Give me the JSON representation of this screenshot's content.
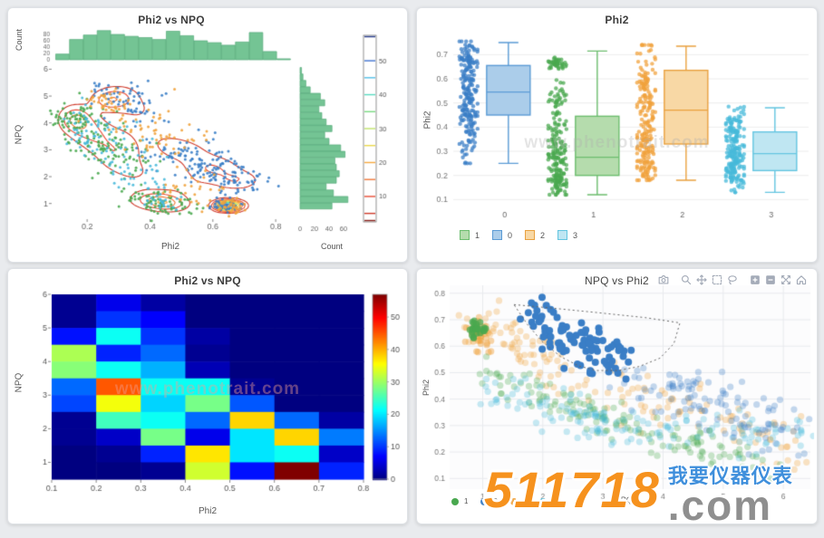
{
  "page": {
    "background": "#e9ebee",
    "site_watermark": {
      "number": "511718",
      "suffix": ".com",
      "chinese": "我要仪器仪表",
      "number_color": "#f6921e",
      "suffix_color": "#8f8f8f",
      "chinese_color": "#3f8fdc"
    },
    "faint_watermark": "www.phenotrait.com"
  },
  "colors": {
    "blue": {
      "dot": "#3a7ec6",
      "fill": "#abcdea",
      "edge": "#5b9bd5"
    },
    "green": {
      "dot": "#49a84f",
      "fill": "#b5dcad",
      "edge": "#6cbd6e"
    },
    "orange": {
      "dot": "#f0a23c",
      "fill": "#f8d8a5",
      "edge": "#e9a13f"
    },
    "cyan": {
      "dot": "#47b9da",
      "fill": "#bfe6f2",
      "edge": "#63c5e0"
    },
    "hist_fill": "#74c494",
    "hist_edge": "#55ab79"
  },
  "chart_data": [
    {
      "type": "scatter",
      "subtype": "kde-jointplot",
      "title": "Phi2 vs NPQ",
      "xlabel": "Phi2",
      "ylabel": "NPQ",
      "xlim": [
        0.09,
        0.84
      ],
      "ylim": [
        0.45,
        6.25
      ],
      "xticks": [
        0.2,
        0.4,
        0.6,
        0.8
      ],
      "yticks": [
        1,
        2,
        3,
        4,
        5,
        6
      ],
      "top_hist": {
        "label": "Count",
        "ticks": [
          0,
          20,
          40,
          60,
          80
        ],
        "bin_start": 0.1,
        "bin_width": 0.044,
        "values": [
          18,
          64,
          78,
          92,
          80,
          74,
          70,
          64,
          90,
          76,
          60,
          54,
          46,
          56,
          86,
          26,
          3
        ]
      },
      "right_hist": {
        "label": "Count",
        "ticks": [
          0,
          20,
          40,
          60
        ],
        "bin_start": 5.95,
        "bin_step": 0.24,
        "values": [
          2,
          4,
          8,
          14,
          28,
          34,
          26,
          30,
          36,
          44,
          34,
          40,
          56,
          62,
          48,
          50,
          54,
          50,
          36,
          46,
          66,
          44
        ]
      },
      "colorbar": {
        "ticks": [
          10,
          20,
          30,
          40,
          50
        ],
        "levels": [
          5,
          10,
          15,
          20,
          25,
          30,
          35,
          40,
          45,
          50
        ],
        "level_colors": [
          "#cf3a2a",
          "#e84a33",
          "#f07838",
          "#f6a83e",
          "#ecd94e",
          "#bfe468",
          "#7cdc85",
          "#58dcc0",
          "#4fc0e8",
          "#3f72d0"
        ],
        "edge_top_color": "#2b3f90",
        "edge_bottom_color": "#8b1f1a"
      },
      "clusters": [
        {
          "key": "blue",
          "cx": 0.3,
          "cy": 5.05,
          "sx": 0.05,
          "sy": 0.28,
          "n": 45
        },
        {
          "key": "blue",
          "cx": 0.36,
          "cy": 4.55,
          "sx": 0.05,
          "sy": 0.3,
          "n": 25
        },
        {
          "key": "blue",
          "cx": 0.52,
          "cy": 2.9,
          "sx": 0.07,
          "sy": 0.35,
          "n": 55
        },
        {
          "key": "blue",
          "cx": 0.6,
          "cy": 2.3,
          "sx": 0.06,
          "sy": 0.3,
          "n": 70
        },
        {
          "key": "blue",
          "cx": 0.68,
          "cy": 1.85,
          "sx": 0.05,
          "sy": 0.25,
          "n": 45
        },
        {
          "key": "blue",
          "cx": 0.64,
          "cy": 0.92,
          "sx": 0.025,
          "sy": 0.12,
          "n": 45
        },
        {
          "key": "green",
          "cx": 0.16,
          "cy": 4.15,
          "sx": 0.035,
          "sy": 0.35,
          "n": 70
        },
        {
          "key": "green",
          "cx": 0.24,
          "cy": 3.4,
          "sx": 0.05,
          "sy": 0.45,
          "n": 55
        },
        {
          "key": "green",
          "cx": 0.3,
          "cy": 2.6,
          "sx": 0.05,
          "sy": 0.4,
          "n": 45
        },
        {
          "key": "green",
          "cx": 0.4,
          "cy": 1.15,
          "sx": 0.05,
          "sy": 0.25,
          "n": 55
        },
        {
          "key": "green",
          "cx": 0.48,
          "cy": 0.95,
          "sx": 0.04,
          "sy": 0.2,
          "n": 25
        },
        {
          "key": "cyan",
          "cx": 0.2,
          "cy": 3.8,
          "sx": 0.04,
          "sy": 0.4,
          "n": 45
        },
        {
          "key": "cyan",
          "cx": 0.3,
          "cy": 3.1,
          "sx": 0.05,
          "sy": 0.4,
          "n": 35
        },
        {
          "key": "cyan",
          "cx": 0.36,
          "cy": 2.1,
          "sx": 0.05,
          "sy": 0.35,
          "n": 30
        },
        {
          "key": "cyan",
          "cx": 0.44,
          "cy": 1.05,
          "sx": 0.035,
          "sy": 0.18,
          "n": 25
        },
        {
          "key": "orange",
          "cx": 0.27,
          "cy": 4.8,
          "sx": 0.04,
          "sy": 0.25,
          "n": 40
        },
        {
          "key": "orange",
          "cx": 0.37,
          "cy": 3.9,
          "sx": 0.06,
          "sy": 0.4,
          "n": 30
        },
        {
          "key": "orange",
          "cx": 0.46,
          "cy": 3.3,
          "sx": 0.06,
          "sy": 0.35,
          "n": 30
        },
        {
          "key": "orange",
          "cx": 0.52,
          "cy": 1.6,
          "sx": 0.06,
          "sy": 0.3,
          "n": 30
        },
        {
          "key": "orange",
          "cx": 0.66,
          "cy": 0.92,
          "sx": 0.03,
          "sy": 0.14,
          "n": 40
        }
      ]
    },
    {
      "type": "box",
      "title": "Phi2",
      "ylabel": "Phi2",
      "categories": [
        "0",
        "1",
        "2",
        "3"
      ],
      "ylim": [
        0.075,
        0.78
      ],
      "yticks": [
        0.1,
        0.2,
        0.3,
        0.4,
        0.5,
        0.6,
        0.7
      ],
      "series": [
        {
          "cat": "0",
          "key": "blue",
          "lo": 0.25,
          "q1": 0.45,
          "med": 0.545,
          "q3": 0.655,
          "hi": 0.75,
          "strip": [
            {
              "c": 0.55,
              "s": 0.1,
              "n": 120
            },
            {
              "c": 0.4,
              "s": 0.08,
              "n": 60
            },
            {
              "c": 0.68,
              "s": 0.04,
              "n": 45
            }
          ]
        },
        {
          "cat": "1",
          "key": "green",
          "lo": 0.12,
          "q1": 0.2,
          "med": 0.275,
          "q3": 0.445,
          "hi": 0.715,
          "strip": [
            {
              "c": 0.25,
              "s": 0.07,
              "n": 90
            },
            {
              "c": 0.38,
              "s": 0.09,
              "n": 50
            },
            {
              "c": 0.5,
              "s": 0.05,
              "n": 30
            },
            {
              "c": 0.663,
              "s": 0.013,
              "n": 45
            },
            {
              "c": 0.17,
              "s": 0.03,
              "n": 40
            }
          ]
        },
        {
          "cat": "2",
          "key": "orange",
          "lo": 0.18,
          "q1": 0.33,
          "med": 0.47,
          "q3": 0.635,
          "hi": 0.735,
          "strip": [
            {
              "c": 0.45,
              "s": 0.12,
              "n": 85
            },
            {
              "c": 0.6,
              "s": 0.07,
              "n": 55
            },
            {
              "c": 0.3,
              "s": 0.06,
              "n": 55
            },
            {
              "c": 0.22,
              "s": 0.03,
              "n": 30
            }
          ]
        },
        {
          "cat": "3",
          "key": "cyan",
          "lo": 0.13,
          "q1": 0.22,
          "med": 0.29,
          "q3": 0.38,
          "hi": 0.48,
          "strip": [
            {
              "c": 0.3,
              "s": 0.07,
              "n": 115
            },
            {
              "c": 0.22,
              "s": 0.04,
              "n": 60
            },
            {
              "c": 0.42,
              "s": 0.04,
              "n": 45
            }
          ]
        }
      ],
      "legend": [
        {
          "label": "1",
          "key": "green"
        },
        {
          "label": "0",
          "key": "blue"
        },
        {
          "label": "2",
          "key": "orange"
        },
        {
          "label": "3",
          "key": "cyan"
        }
      ]
    },
    {
      "type": "heatmap",
      "title": "Phi2 vs NPQ",
      "xlabel": "Phi2",
      "ylabel": "NPQ",
      "x_edges": [
        0.1,
        0.2,
        0.3,
        0.4,
        0.5,
        0.6,
        0.7,
        0.8
      ],
      "y_top": 6.0,
      "y_bottom": 0.5,
      "row_height": 0.5,
      "xticks": [
        0.1,
        0.2,
        0.3,
        0.4,
        0.5,
        0.6,
        0.7,
        0.8
      ],
      "yticks": [
        1,
        2,
        3,
        4,
        5,
        6
      ],
      "vmax": 57,
      "colorbar_ticks": [
        0,
        10,
        20,
        30,
        40,
        50
      ],
      "values": [
        [
          1,
          6,
          2,
          0,
          0,
          0,
          0
        ],
        [
          1,
          10,
          7,
          0,
          0,
          0,
          0
        ],
        [
          8,
          22,
          10,
          2,
          0,
          0,
          0
        ],
        [
          31,
          9,
          13,
          1,
          0,
          0,
          0
        ],
        [
          29,
          22,
          17,
          3,
          0,
          0,
          0
        ],
        [
          13,
          45,
          22,
          22,
          1,
          0,
          0
        ],
        [
          11,
          35,
          19,
          28,
          12,
          0,
          0
        ],
        [
          1,
          25,
          22,
          13,
          38,
          13,
          2
        ],
        [
          1,
          4,
          28,
          6,
          20,
          38,
          14
        ],
        [
          0,
          1,
          9,
          37,
          20,
          22,
          4
        ],
        [
          0,
          0,
          1,
          33,
          8,
          57,
          9
        ]
      ]
    },
    {
      "type": "scatter",
      "subtype": "plotly-lasso",
      "title": "NPQ vs Phi2",
      "xlabel": "NPQ",
      "ylabel": "Phi2",
      "xlim": [
        0.45,
        6.45
      ],
      "ylim": [
        0.06,
        0.83
      ],
      "xticks": [
        1,
        2,
        3,
        4,
        5,
        6
      ],
      "yticks": [
        0.1,
        0.2,
        0.3,
        0.4,
        0.5,
        0.6,
        0.7,
        0.8
      ],
      "legend": [
        {
          "label": "1",
          "key": "green"
        },
        {
          "label": "0",
          "key": "blue"
        },
        {
          "label": "2",
          "key": "orange"
        },
        {
          "label": "3",
          "key": "cyan"
        }
      ],
      "modebar_icons": [
        "camera",
        "zoom",
        "pan",
        "box-select",
        "lasso",
        "zoom-in",
        "zoom-out",
        "autoscale",
        "reset-home"
      ],
      "bands": [
        {
          "key": "orange",
          "kind": "band",
          "x0": 0.75,
          "y0": 0.7,
          "x1": 2.2,
          "y1": 0.55,
          "sy": 0.05,
          "n": 60,
          "alpha": 0.3
        },
        {
          "key": "orange",
          "kind": "band",
          "x0": 2.2,
          "y0": 0.5,
          "x1": 6.3,
          "y1": 0.22,
          "sy": 0.05,
          "n": 95,
          "alpha": 0.3
        },
        {
          "key": "orange",
          "kind": "cluster",
          "cx": 1.0,
          "cy": 0.655,
          "sx": 0.12,
          "sy": 0.04,
          "n": 35,
          "alpha": 0.45
        },
        {
          "key": "green",
          "kind": "cluster",
          "cx": 0.92,
          "cy": 0.66,
          "sx": 0.07,
          "sy": 0.022,
          "n": 28,
          "alpha": 0.75
        },
        {
          "key": "green",
          "kind": "band",
          "x0": 1.0,
          "y0": 0.5,
          "x1": 3.2,
          "y1": 0.32,
          "sy": 0.04,
          "n": 75,
          "alpha": 0.3
        },
        {
          "key": "green",
          "kind": "band",
          "x0": 3.2,
          "y0": 0.3,
          "x1": 5.8,
          "y1": 0.15,
          "sy": 0.035,
          "n": 75,
          "alpha": 0.3
        },
        {
          "key": "cyan",
          "kind": "band",
          "x0": 1.1,
          "y0": 0.44,
          "x1": 3.5,
          "y1": 0.27,
          "sy": 0.04,
          "n": 85,
          "alpha": 0.3
        },
        {
          "key": "cyan",
          "kind": "band",
          "x0": 3.5,
          "y0": 0.28,
          "x1": 6.3,
          "y1": 0.26,
          "sy": 0.035,
          "n": 60,
          "alpha": 0.3
        },
        {
          "key": "blue",
          "kind": "band",
          "x0": 3.2,
          "y0": 0.48,
          "x1": 6.4,
          "y1": 0.26,
          "sy": 0.05,
          "n": 85,
          "alpha": 0.3
        },
        {
          "key": "blue",
          "kind": "cluster",
          "cx": 4.6,
          "cy": 0.42,
          "sx": 0.5,
          "sy": 0.04,
          "n": 25,
          "alpha": 0.3
        },
        {
          "key": "blue",
          "kind": "band",
          "x0": 1.85,
          "y0": 0.7,
          "x1": 3.35,
          "y1": 0.53,
          "sy": 0.045,
          "n": 95,
          "alpha": 1.0,
          "selected": true
        }
      ],
      "selection_polygon": [
        [
          1.52,
          0.757
        ],
        [
          2.1,
          0.745
        ],
        [
          2.9,
          0.727
        ],
        [
          3.7,
          0.708
        ],
        [
          4.28,
          0.688
        ],
        [
          4.18,
          0.61
        ],
        [
          3.95,
          0.555
        ],
        [
          3.6,
          0.523
        ],
        [
          3.25,
          0.508
        ],
        [
          2.9,
          0.508
        ],
        [
          2.6,
          0.525
        ],
        [
          2.3,
          0.56
        ],
        [
          2.0,
          0.615
        ],
        [
          1.75,
          0.68
        ],
        [
          1.52,
          0.757
        ]
      ]
    }
  ]
}
